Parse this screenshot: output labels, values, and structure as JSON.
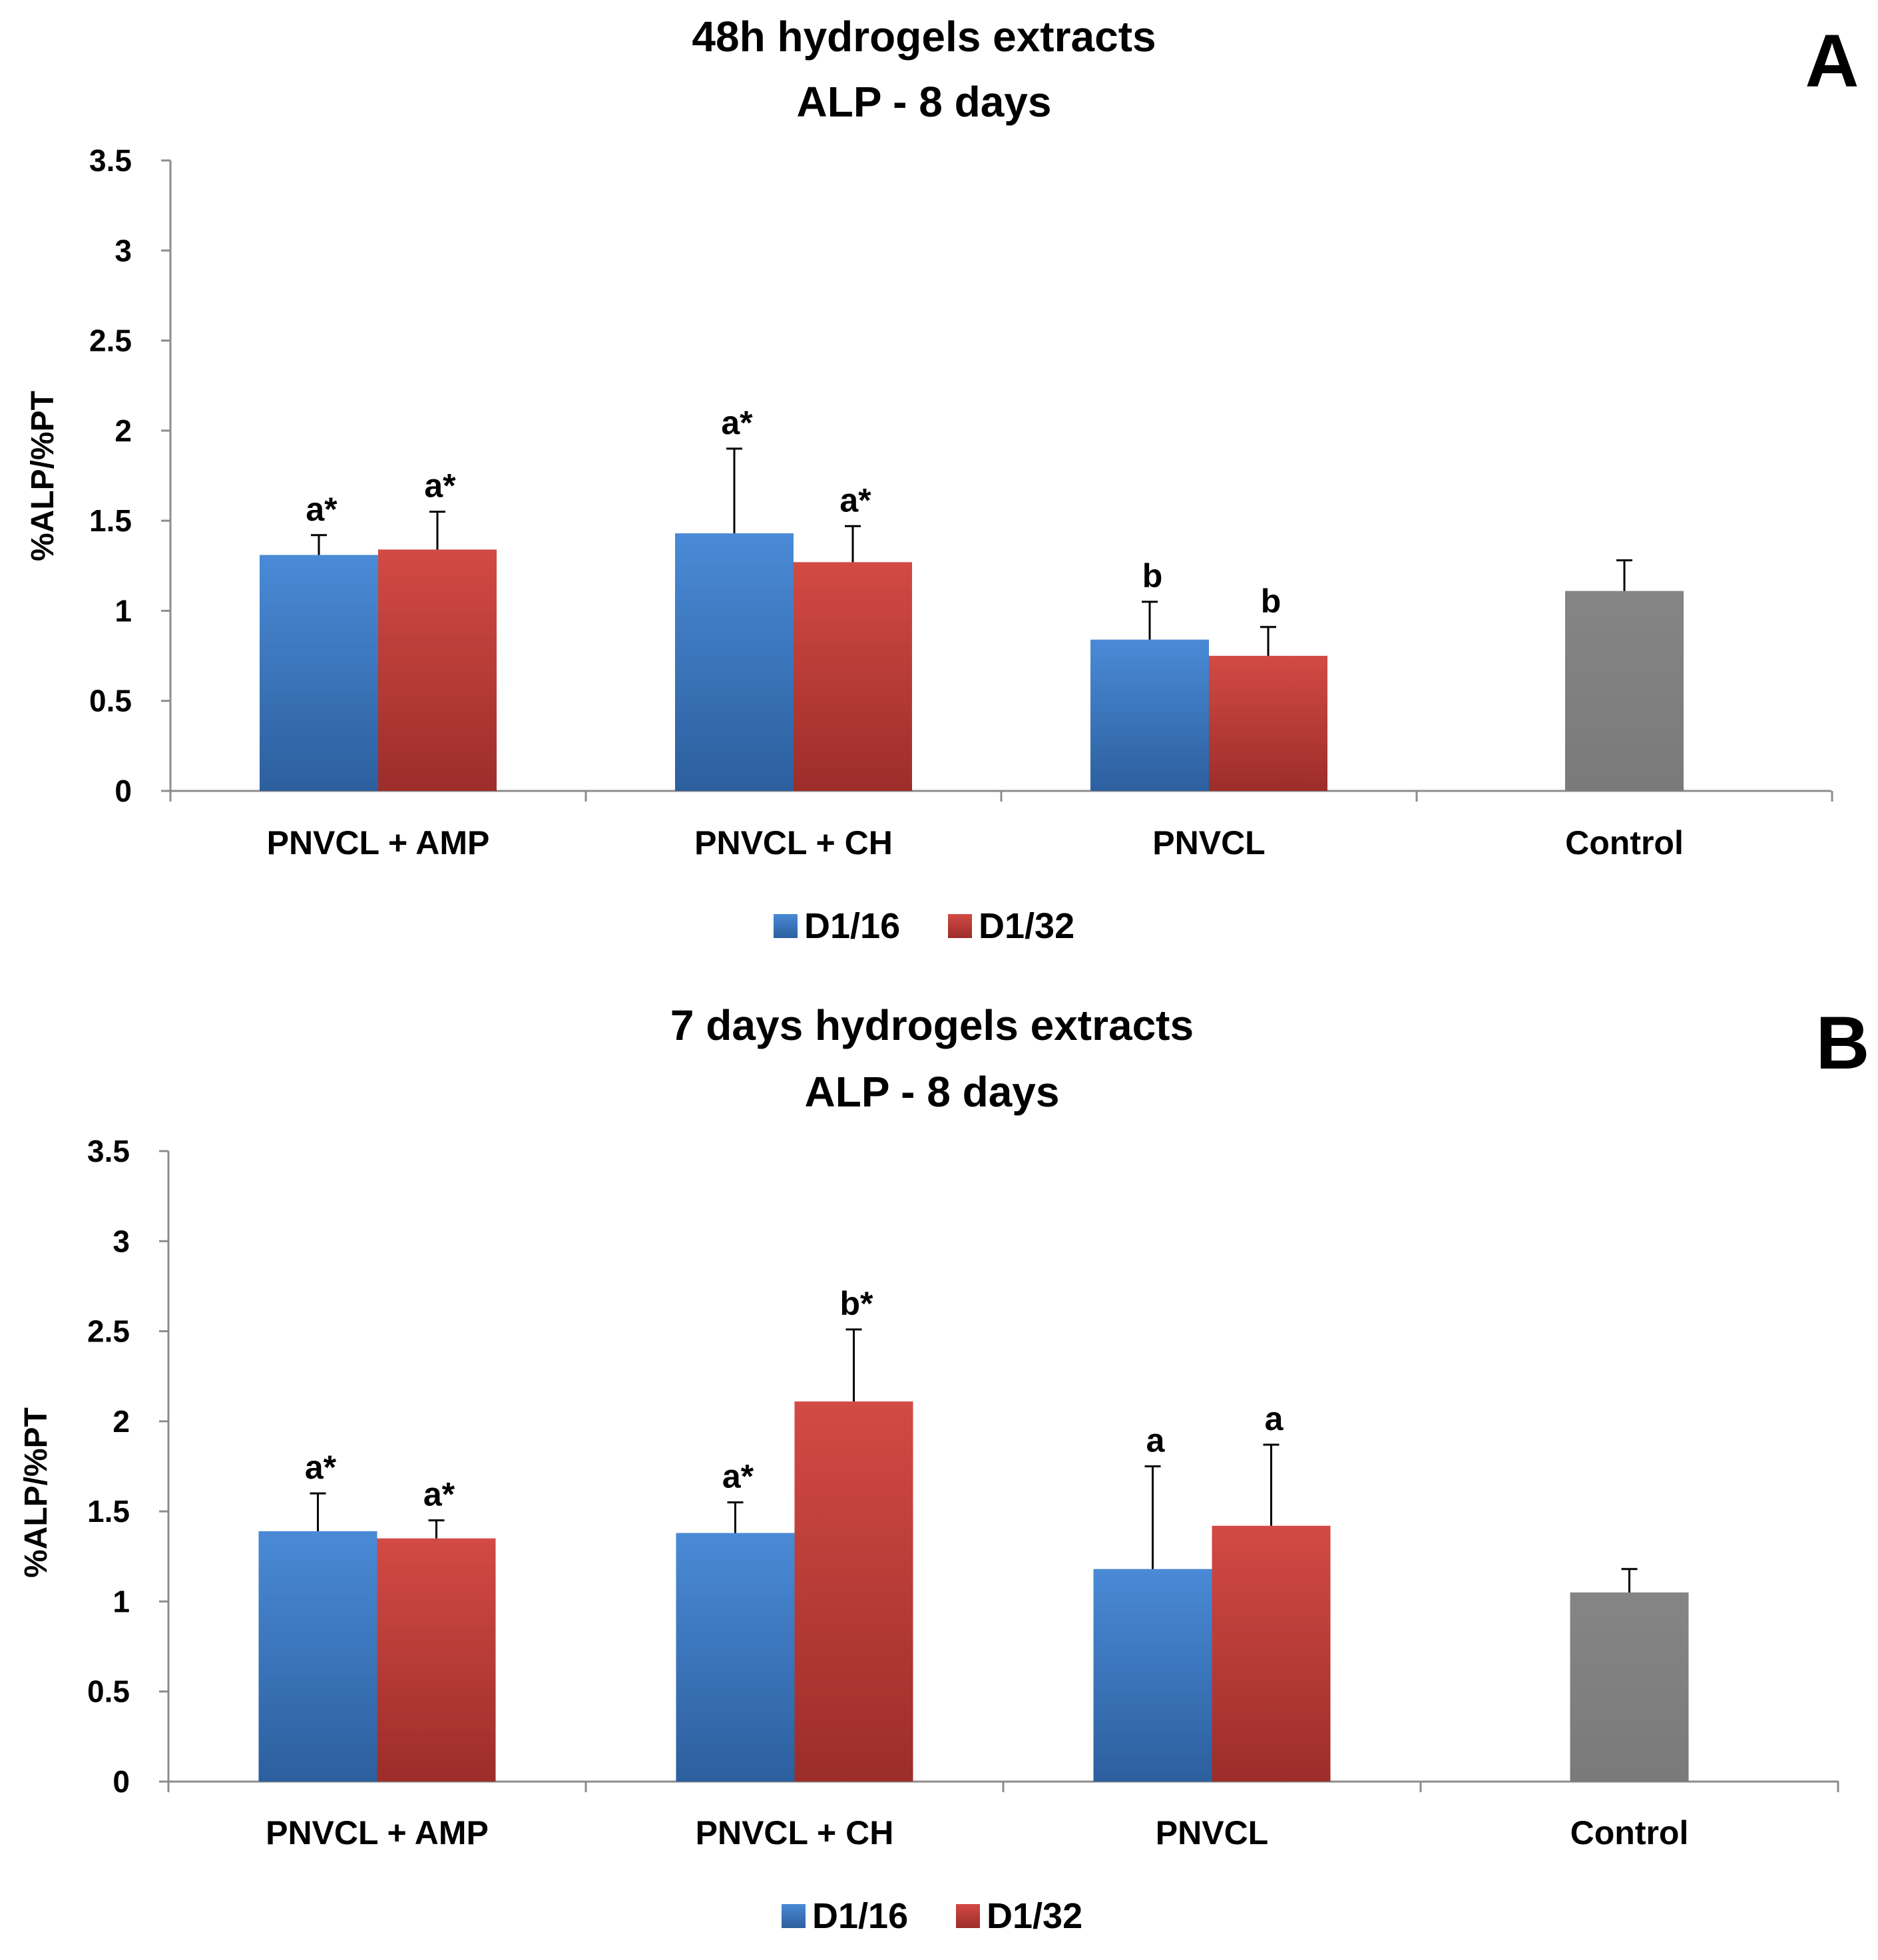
{
  "chart_data": [
    {
      "panel": "A",
      "type": "bar",
      "title_lines": [
        "48h hydrogels extracts",
        "ALP - 8 days"
      ],
      "ylabel": "%ALP/%PT",
      "ylim": [
        0,
        3.5
      ],
      "yticks": [
        "0",
        "0.5",
        "1",
        "1.5",
        "2",
        "2.5",
        "3",
        "3.5"
      ],
      "categories": [
        "PNVCL + AMP",
        "PNVCL + CH",
        "PNVCL",
        "Control"
      ],
      "series": [
        {
          "name": "D1/16",
          "color": "#3f7fcc",
          "values": [
            1.31,
            1.43,
            0.84,
            null
          ],
          "errors": [
            0.11,
            0.47,
            0.21,
            null
          ],
          "labels": [
            "a*",
            "a*",
            "b",
            null
          ]
        },
        {
          "name": "D1/32",
          "color": "#c9403c",
          "values": [
            1.34,
            1.27,
            0.75,
            null
          ],
          "errors": [
            0.21,
            0.2,
            0.16,
            null
          ],
          "labels": [
            "a*",
            "a*",
            "b",
            null
          ]
        }
      ],
      "control": {
        "value": 1.11,
        "error": 0.17,
        "color": "#808080"
      }
    },
    {
      "panel": "B",
      "type": "bar",
      "title_lines": [
        "7 days hydrogels extracts",
        "ALP - 8 days"
      ],
      "ylabel": "%ALP/%PT",
      "ylim": [
        0,
        3.5
      ],
      "yticks": [
        "0",
        "0.5",
        "1",
        "1.5",
        "2",
        "2.5",
        "3",
        "3.5"
      ],
      "categories": [
        "PNVCL + AMP",
        "PNVCL + CH",
        "PNVCL",
        "Control"
      ],
      "series": [
        {
          "name": "D1/16",
          "color": "#3f7fcc",
          "values": [
            1.39,
            1.38,
            1.18,
            null
          ],
          "errors": [
            0.21,
            0.17,
            0.57,
            null
          ],
          "labels": [
            "a*",
            "a*",
            "a",
            null
          ]
        },
        {
          "name": "D1/32",
          "color": "#c9403c",
          "values": [
            1.35,
            2.11,
            1.42,
            null
          ],
          "errors": [
            0.1,
            0.4,
            0.45,
            null
          ],
          "labels": [
            "a*",
            "b*",
            "a",
            null
          ]
        }
      ],
      "control": {
        "value": 1.05,
        "error": 0.13,
        "color": "#808080"
      }
    }
  ]
}
